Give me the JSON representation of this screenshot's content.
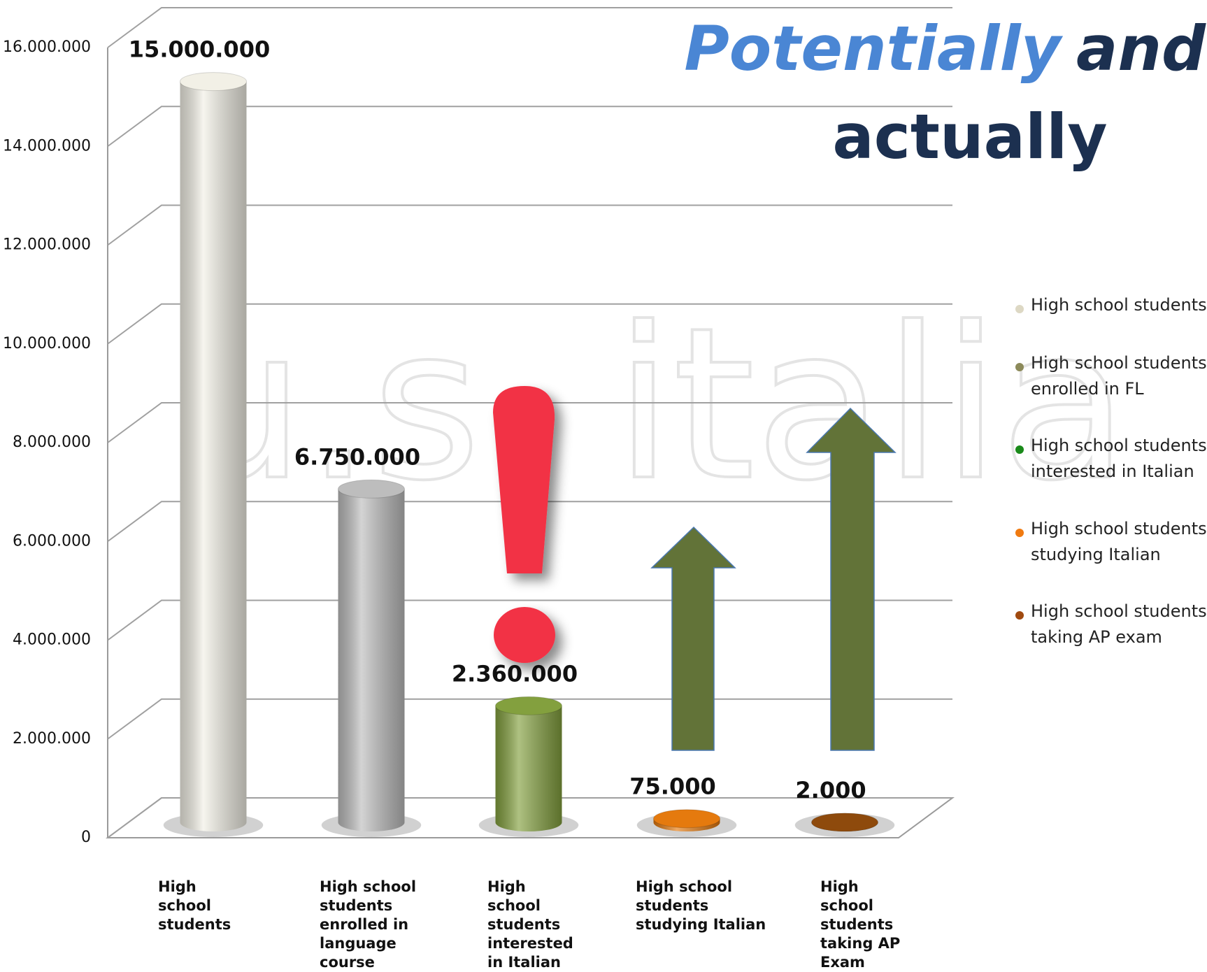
{
  "chart_data": {
    "type": "bar3d",
    "title_parts": [
      "Potentially",
      "and",
      "actually"
    ],
    "watermark": "u.s. italia",
    "categories": [
      "High school students",
      "High school students enrolled in language course",
      "High school students interested in Italian",
      "High school students studying Italian",
      "High school students taking AP Exam"
    ],
    "values": [
      15000000,
      6750000,
      2360000,
      75000,
      2000
    ],
    "value_labels": [
      "15.000.000",
      "6.750.000",
      "2.360.000",
      "75.000",
      "2.000"
    ],
    "colors": [
      "#f2f0e6",
      "#bdbdbd",
      "#83a03e",
      "#e57a0e",
      "#8e4a0c"
    ],
    "ylim": [
      0,
      16000000
    ],
    "yticks": [
      {
        "value": 0,
        "label": "0"
      },
      {
        "value": 2000000,
        "label": "2.000.000"
      },
      {
        "value": 4000000,
        "label": "4.000.000"
      },
      {
        "value": 6000000,
        "label": "6.000.000"
      },
      {
        "value": 8000000,
        "label": "8.000.000"
      },
      {
        "value": 10000000,
        "label": "10.000.000"
      },
      {
        "value": 12000000,
        "label": "12.000.000"
      },
      {
        "value": 14000000,
        "label": "14.000.000"
      },
      {
        "value": 16000000,
        "label": "16.000.000"
      }
    ],
    "grid": true,
    "legend_position": "right",
    "legend": [
      {
        "name": "High school students",
        "color": "#ddd8c4"
      },
      {
        "name": "High school students enrolled in FL",
        "color": "#8c8a5a"
      },
      {
        "name": "High school students interested in Italian",
        "color": "#1a8a1a"
      },
      {
        "name": "High school students studying Italian",
        "color": "#f07a10"
      },
      {
        "name": "High school students taking AP exam",
        "color": "#a04a10"
      }
    ]
  }
}
